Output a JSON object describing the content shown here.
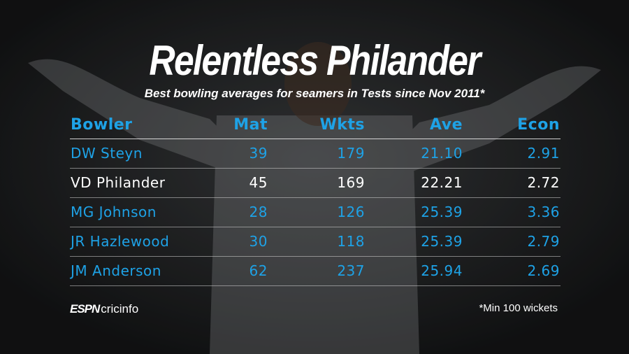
{
  "header": {
    "title": "Relentless Philander",
    "subtitle": "Best bowling averages for seamers in Tests since Nov 2011*"
  },
  "table": {
    "columns": [
      "Bowler",
      "Mat",
      "Wkts",
      "Ave",
      "Econ"
    ],
    "rows": [
      [
        "DW Steyn",
        "39",
        "179",
        "21.10",
        "2.91"
      ],
      [
        "VD Philander",
        "45",
        "169",
        "22.21",
        "2.72"
      ],
      [
        "MG Johnson",
        "28",
        "126",
        "25.39",
        "3.36"
      ],
      [
        "JR Hazlewood",
        "30",
        "118",
        "25.39",
        "2.79"
      ],
      [
        "JM Anderson",
        "62",
        "237",
        "25.94",
        "2.69"
      ]
    ]
  },
  "footer": {
    "logo": {
      "brand": "ESPN",
      "name": "cricinfo"
    },
    "note": "*Min 100 wickets"
  }
}
